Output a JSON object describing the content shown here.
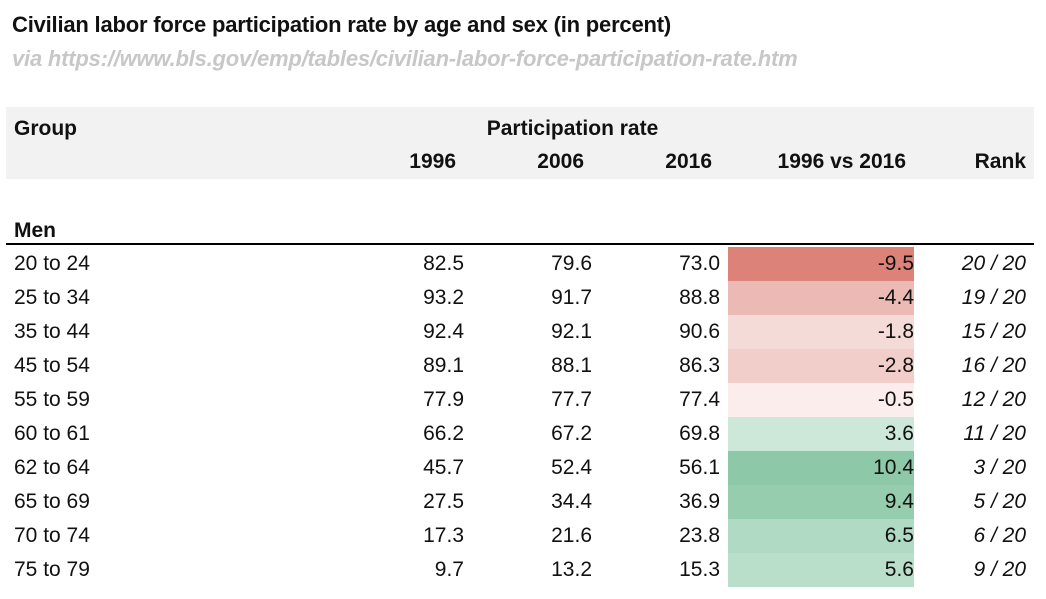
{
  "title": "Civilian labor force participation rate by age and sex (in percent)",
  "subtitle": "via https://www.bls.gov/emp/tables/civilian-labor-force-participation-rate.htm",
  "header": {
    "group": "Group",
    "participation": "Participation rate",
    "columns": [
      "1996",
      "2006",
      "2016",
      "1996 vs 2016",
      "Rank"
    ]
  },
  "section": "Men",
  "colors": {
    "negative": "#d9796f",
    "positive": "#8dc9a8",
    "header_bg": "#f2f2f2",
    "subtitle": "#c7c7c7"
  },
  "chart_data": {
    "type": "table",
    "title": "Civilian labor force participation rate by age and sex (in percent)",
    "columns": [
      "Group",
      "1996",
      "2006",
      "2016",
      "1996 vs 2016",
      "Rank"
    ],
    "section": "Men",
    "rows": [
      {
        "group": "20 to 24",
        "y1996": "82.5",
        "y2006": "79.6",
        "y2016": "73.0",
        "diff": "-9.5",
        "rank": "20 / 20",
        "value": -9.5
      },
      {
        "group": "25 to 34",
        "y1996": "93.2",
        "y2006": "91.7",
        "y2016": "88.8",
        "diff": "-4.4",
        "rank": "19 / 20",
        "value": -4.4
      },
      {
        "group": "35 to 44",
        "y1996": "92.4",
        "y2006": "92.1",
        "y2016": "90.6",
        "diff": "-1.8",
        "rank": "15 / 20",
        "value": -1.8
      },
      {
        "group": "45 to 54",
        "y1996": "89.1",
        "y2006": "88.1",
        "y2016": "86.3",
        "diff": "-2.8",
        "rank": "16 / 20",
        "value": -2.8
      },
      {
        "group": "55 to 59",
        "y1996": "77.9",
        "y2006": "77.7",
        "y2016": "77.4",
        "diff": "-0.5",
        "rank": "12 / 20",
        "value": -0.5
      },
      {
        "group": "60 to 61",
        "y1996": "66.2",
        "y2006": "67.2",
        "y2016": "69.8",
        "diff": "3.6",
        "rank": "11 / 20",
        "value": 3.6
      },
      {
        "group": "62 to 64",
        "y1996": "45.7",
        "y2006": "52.4",
        "y2016": "56.1",
        "diff": "10.4",
        "rank": "3 / 20",
        "value": 10.4
      },
      {
        "group": "65 to 69",
        "y1996": "27.5",
        "y2006": "34.4",
        "y2016": "36.9",
        "diff": "9.4",
        "rank": "5 / 20",
        "value": 9.4
      },
      {
        "group": "70 to 74",
        "y1996": "17.3",
        "y2006": "21.6",
        "y2016": "23.8",
        "diff": "6.5",
        "rank": "6 / 20",
        "value": 6.5
      },
      {
        "group": "75 to 79",
        "y1996": "9.7",
        "y2006": "13.2",
        "y2016": "15.3",
        "diff": "5.6",
        "rank": "9 / 20",
        "value": 5.6
      }
    ]
  }
}
